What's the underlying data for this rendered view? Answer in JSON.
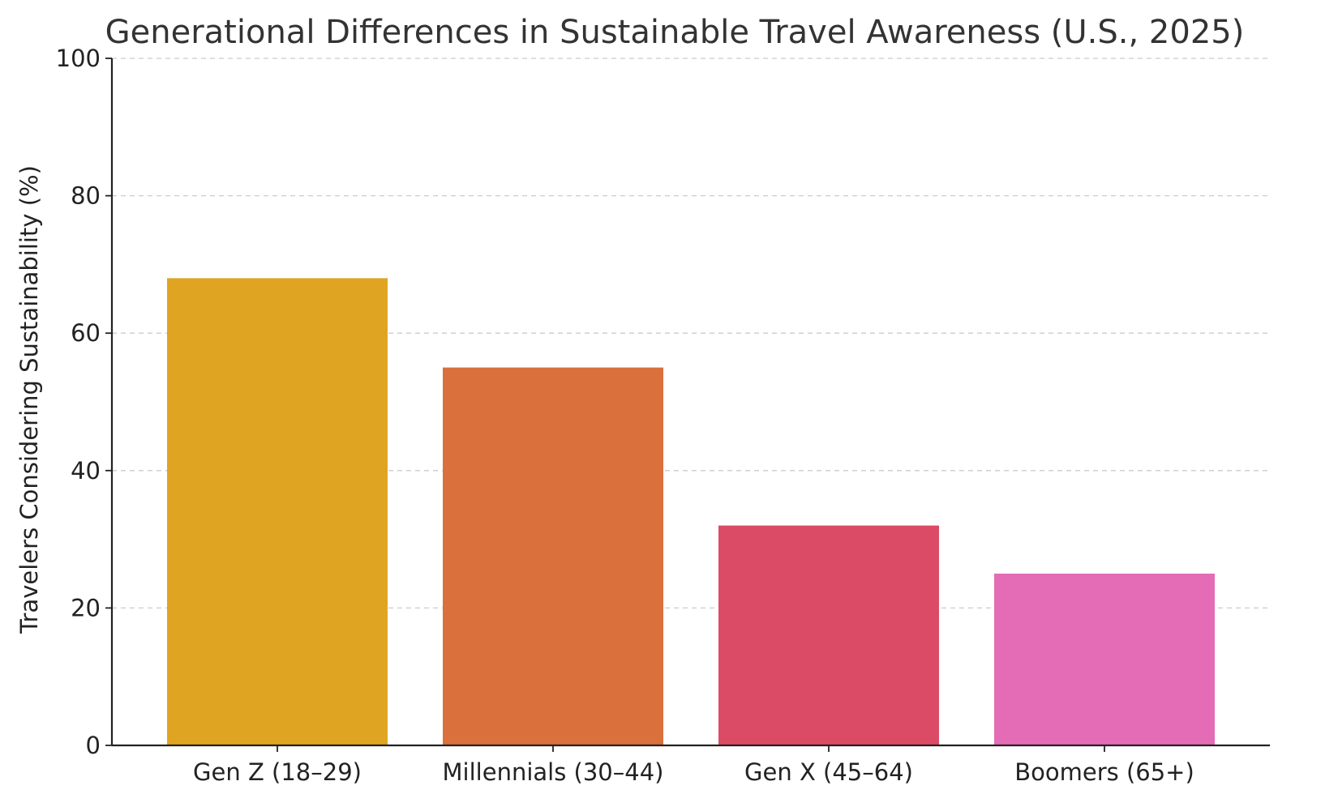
{
  "chart_data": {
    "type": "bar",
    "title": "Generational Differences in Sustainable Travel Awareness (U.S., 2025)",
    "xlabel": "",
    "ylabel": "Travelers Considering Sustainability (%)",
    "categories": [
      "Gen Z (18–29)",
      "Millennials (30–44)",
      "Gen X (45–64)",
      "Boomers (65+)"
    ],
    "values": [
      68,
      55,
      32,
      25
    ],
    "colors": [
      "#DFA421",
      "#DA703B",
      "#DC4B65",
      "#E46CB6"
    ],
    "ylim": [
      0,
      100
    ],
    "yticks": [
      0,
      20,
      40,
      60,
      80,
      100
    ],
    "ytick_labels": [
      "0",
      "20",
      "40",
      "60",
      "80",
      "100"
    ],
    "grid": true,
    "grid_axis": "y"
  }
}
